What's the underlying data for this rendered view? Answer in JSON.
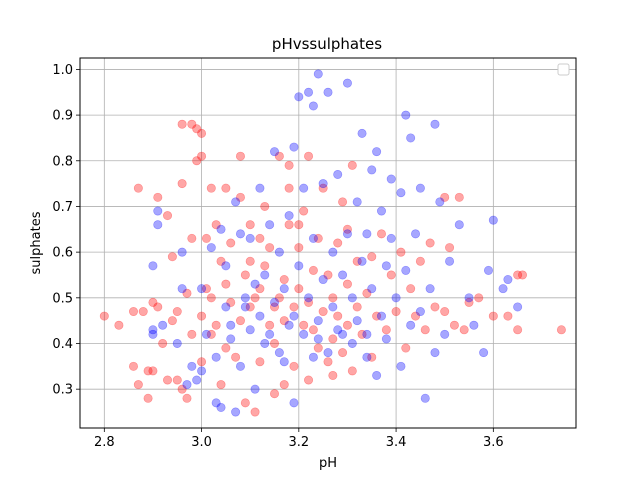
{
  "chart_data": {
    "type": "scatter",
    "title": "pHvssulphates",
    "xlabel": "pH",
    "ylabel": "sulphates",
    "xlim": [
      2.75,
      3.77
    ],
    "ylim": [
      0.215,
      1.025
    ],
    "x_ticks": [
      2.8,
      3.0,
      3.2,
      3.4,
      3.6
    ],
    "y_ticks": [
      0.3,
      0.4,
      0.5,
      0.6,
      0.7,
      0.8,
      0.9,
      1.0
    ],
    "x_tick_labels": [
      "2.8",
      "3.0",
      "3.2",
      "3.4",
      "3.6"
    ],
    "y_tick_labels": [
      "0.3",
      "0.4",
      "0.5",
      "0.6",
      "0.7",
      "0.8",
      "0.9",
      "1.0"
    ],
    "grid": true,
    "legend": {
      "placement": "top-right",
      "entries": []
    },
    "series": [
      {
        "color": "#ff0000",
        "alpha": 0.35,
        "points": [
          [
            2.8,
            0.46
          ],
          [
            2.83,
            0.44
          ],
          [
            2.86,
            0.47
          ],
          [
            2.86,
            0.35
          ],
          [
            2.87,
            0.74
          ],
          [
            2.87,
            0.31
          ],
          [
            2.88,
            0.47
          ],
          [
            2.89,
            0.34
          ],
          [
            2.89,
            0.28
          ],
          [
            2.9,
            0.34
          ],
          [
            2.9,
            0.49
          ],
          [
            2.91,
            0.48
          ],
          [
            2.91,
            0.72
          ],
          [
            2.92,
            0.4
          ],
          [
            2.93,
            0.68
          ],
          [
            2.93,
            0.32
          ],
          [
            2.94,
            0.59
          ],
          [
            2.94,
            0.45
          ],
          [
            2.95,
            0.47
          ],
          [
            2.95,
            0.32
          ],
          [
            2.96,
            0.75
          ],
          [
            2.96,
            0.88
          ],
          [
            2.96,
            0.3
          ],
          [
            2.97,
            0.28
          ],
          [
            2.97,
            0.51
          ],
          [
            2.98,
            0.88
          ],
          [
            2.98,
            0.63
          ],
          [
            2.98,
            0.42
          ],
          [
            2.99,
            0.8
          ],
          [
            2.99,
            0.87
          ],
          [
            3.0,
            0.81
          ],
          [
            3.0,
            0.86
          ],
          [
            3.0,
            0.46
          ],
          [
            3.0,
            0.36
          ],
          [
            3.01,
            0.52
          ],
          [
            3.01,
            0.63
          ],
          [
            3.02,
            0.42
          ],
          [
            3.02,
            0.5
          ],
          [
            3.03,
            0.66
          ],
          [
            3.03,
            0.44
          ],
          [
            3.04,
            0.58
          ],
          [
            3.04,
            0.31
          ],
          [
            3.05,
            0.74
          ],
          [
            3.05,
            0.53
          ],
          [
            3.06,
            0.49
          ],
          [
            3.06,
            0.62
          ],
          [
            3.07,
            0.37
          ],
          [
            3.08,
            0.72
          ],
          [
            3.08,
            0.45
          ],
          [
            3.09,
            0.55
          ],
          [
            3.09,
            0.27
          ],
          [
            3.1,
            0.66
          ],
          [
            3.1,
            0.48
          ],
          [
            3.1,
            0.58
          ],
          [
            3.11,
            0.25
          ],
          [
            3.11,
            0.5
          ],
          [
            3.12,
            0.36
          ],
          [
            3.12,
            0.52
          ],
          [
            3.13,
            0.57
          ],
          [
            3.13,
            0.7
          ],
          [
            3.14,
            0.44
          ],
          [
            3.14,
            0.61
          ],
          [
            3.15,
            0.48
          ],
          [
            3.15,
            0.29
          ],
          [
            3.16,
            0.5
          ],
          [
            3.16,
            0.81
          ],
          [
            3.17,
            0.45
          ],
          [
            3.17,
            0.54
          ],
          [
            3.18,
            0.79
          ],
          [
            3.18,
            0.66
          ],
          [
            3.19,
            0.48
          ],
          [
            3.19,
            0.35
          ],
          [
            3.2,
            0.52
          ],
          [
            3.2,
            0.61
          ],
          [
            3.21,
            0.44
          ],
          [
            3.21,
            0.69
          ],
          [
            3.22,
            0.49
          ],
          [
            3.22,
            0.32
          ],
          [
            3.23,
            0.56
          ],
          [
            3.23,
            0.43
          ],
          [
            3.24,
            0.63
          ],
          [
            3.24,
            0.39
          ],
          [
            3.25,
            0.47
          ],
          [
            3.25,
            0.74
          ],
          [
            3.26,
            0.55
          ],
          [
            3.26,
            0.36
          ],
          [
            3.27,
            0.5
          ],
          [
            3.27,
            0.41
          ],
          [
            3.28,
            0.62
          ],
          [
            3.28,
            0.46
          ],
          [
            3.29,
            0.71
          ],
          [
            3.29,
            0.38
          ],
          [
            3.3,
            0.53
          ],
          [
            3.3,
            0.44
          ],
          [
            3.31,
            0.79
          ],
          [
            3.31,
            0.34
          ],
          [
            3.32,
            0.48
          ],
          [
            3.32,
            0.58
          ],
          [
            3.33,
            0.42
          ],
          [
            3.34,
            0.51
          ],
          [
            3.35,
            0.59
          ],
          [
            3.35,
            0.37
          ],
          [
            3.36,
            0.46
          ],
          [
            3.37,
            0.64
          ],
          [
            3.38,
            0.43
          ],
          [
            3.39,
            0.55
          ],
          [
            3.4,
            0.47
          ],
          [
            3.41,
            0.6
          ],
          [
            3.42,
            0.39
          ],
          [
            3.43,
            0.52
          ],
          [
            3.44,
            0.46
          ],
          [
            3.45,
            0.58
          ],
          [
            3.46,
            0.43
          ],
          [
            3.47,
            0.62
          ],
          [
            3.48,
            0.48
          ],
          [
            3.5,
            0.47
          ],
          [
            3.51,
            0.61
          ],
          [
            3.52,
            0.44
          ],
          [
            3.53,
            0.72
          ],
          [
            3.54,
            0.43
          ],
          [
            3.55,
            0.49
          ],
          [
            3.57,
            0.5
          ],
          [
            3.6,
            0.46
          ],
          [
            3.63,
            0.46
          ],
          [
            3.65,
            0.55
          ],
          [
            3.65,
            0.43
          ],
          [
            3.74,
            0.43
          ],
          [
            3.66,
            0.55
          ],
          [
            3.5,
            0.72
          ],
          [
            3.2,
            0.66
          ],
          [
            3.08,
            0.81
          ],
          [
            3.22,
            0.81
          ],
          [
            3.02,
            0.74
          ],
          [
            3.18,
            0.74
          ],
          [
            3.3,
            0.65
          ],
          [
            3.12,
            0.63
          ],
          [
            3.05,
            0.39
          ],
          [
            3.15,
            0.4
          ],
          [
            3.27,
            0.33
          ],
          [
            3.17,
            0.31
          ]
        ]
      },
      {
        "color": "#0000ff",
        "alpha": 0.35,
        "points": [
          [
            2.9,
            0.43
          ],
          [
            2.9,
            0.42
          ],
          [
            2.91,
            0.69
          ],
          [
            2.91,
            0.66
          ],
          [
            2.9,
            0.57
          ],
          [
            2.92,
            0.44
          ],
          [
            2.95,
            0.4
          ],
          [
            2.96,
            0.52
          ],
          [
            2.96,
            0.6
          ],
          [
            2.97,
            0.31
          ],
          [
            2.98,
            0.35
          ],
          [
            2.99,
            0.32
          ],
          [
            3.0,
            0.52
          ],
          [
            3.0,
            0.34
          ],
          [
            3.01,
            0.42
          ],
          [
            3.02,
            0.61
          ],
          [
            3.03,
            0.37
          ],
          [
            3.03,
            0.27
          ],
          [
            3.04,
            0.65
          ],
          [
            3.04,
            0.26
          ],
          [
            3.05,
            0.48
          ],
          [
            3.05,
            0.57
          ],
          [
            3.06,
            0.44
          ],
          [
            3.07,
            0.25
          ],
          [
            3.07,
            0.71
          ],
          [
            3.08,
            0.35
          ],
          [
            3.08,
            0.64
          ],
          [
            3.09,
            0.5
          ],
          [
            3.1,
            0.43
          ],
          [
            3.1,
            0.63
          ],
          [
            3.11,
            0.53
          ],
          [
            3.11,
            0.3
          ],
          [
            3.12,
            0.46
          ],
          [
            3.12,
            0.74
          ],
          [
            3.13,
            0.55
          ],
          [
            3.14,
            0.42
          ],
          [
            3.14,
            0.66
          ],
          [
            3.15,
            0.49
          ],
          [
            3.15,
            0.82
          ],
          [
            3.16,
            0.38
          ],
          [
            3.16,
            0.6
          ],
          [
            3.17,
            0.52
          ],
          [
            3.18,
            0.44
          ],
          [
            3.18,
            0.68
          ],
          [
            3.19,
            0.27
          ],
          [
            3.19,
            0.83
          ],
          [
            3.2,
            0.57
          ],
          [
            3.2,
            0.94
          ],
          [
            3.21,
            0.42
          ],
          [
            3.21,
            0.74
          ],
          [
            3.22,
            0.95
          ],
          [
            3.22,
            0.5
          ],
          [
            3.23,
            0.63
          ],
          [
            3.23,
            0.92
          ],
          [
            3.24,
            0.45
          ],
          [
            3.24,
            0.99
          ],
          [
            3.25,
            0.54
          ],
          [
            3.25,
            0.75
          ],
          [
            3.26,
            0.95
          ],
          [
            3.26,
            0.38
          ],
          [
            3.27,
            0.6
          ],
          [
            3.27,
            0.48
          ],
          [
            3.28,
            0.77
          ],
          [
            3.28,
            0.43
          ],
          [
            3.29,
            0.55
          ],
          [
            3.3,
            0.97
          ],
          [
            3.3,
            0.64
          ],
          [
            3.31,
            0.4
          ],
          [
            3.31,
            0.5
          ],
          [
            3.32,
            0.71
          ],
          [
            3.32,
            0.45
          ],
          [
            3.33,
            0.86
          ],
          [
            3.33,
            0.58
          ],
          [
            3.34,
            0.37
          ],
          [
            3.34,
            0.64
          ],
          [
            3.35,
            0.52
          ],
          [
            3.35,
            0.78
          ],
          [
            3.36,
            0.82
          ],
          [
            3.36,
            0.33
          ],
          [
            3.37,
            0.46
          ],
          [
            3.37,
            0.69
          ],
          [
            3.38,
            0.57
          ],
          [
            3.38,
            0.41
          ],
          [
            3.39,
            0.63
          ],
          [
            3.39,
            0.76
          ],
          [
            3.4,
            0.5
          ],
          [
            3.41,
            0.73
          ],
          [
            3.41,
            0.35
          ],
          [
            3.42,
            0.9
          ],
          [
            3.42,
            0.56
          ],
          [
            3.43,
            0.85
          ],
          [
            3.43,
            0.44
          ],
          [
            3.44,
            0.64
          ],
          [
            3.45,
            0.47
          ],
          [
            3.45,
            0.74
          ],
          [
            3.46,
            0.28
          ],
          [
            3.47,
            0.52
          ],
          [
            3.48,
            0.88
          ],
          [
            3.48,
            0.38
          ],
          [
            3.49,
            0.71
          ],
          [
            3.5,
            0.42
          ],
          [
            3.51,
            0.58
          ],
          [
            3.53,
            0.66
          ],
          [
            3.55,
            0.5
          ],
          [
            3.56,
            0.44
          ],
          [
            3.58,
            0.38
          ],
          [
            3.59,
            0.56
          ],
          [
            3.6,
            0.67
          ],
          [
            3.62,
            0.52
          ],
          [
            3.63,
            0.54
          ],
          [
            3.65,
            0.48
          ],
          [
            3.09,
            0.48
          ],
          [
            3.13,
            0.4
          ],
          [
            3.19,
            0.46
          ],
          [
            3.24,
            0.41
          ],
          [
            3.29,
            0.42
          ],
          [
            3.06,
            0.41
          ],
          [
            3.17,
            0.36
          ],
          [
            3.23,
            0.37
          ],
          [
            3.34,
            0.42
          ]
        ]
      }
    ]
  }
}
